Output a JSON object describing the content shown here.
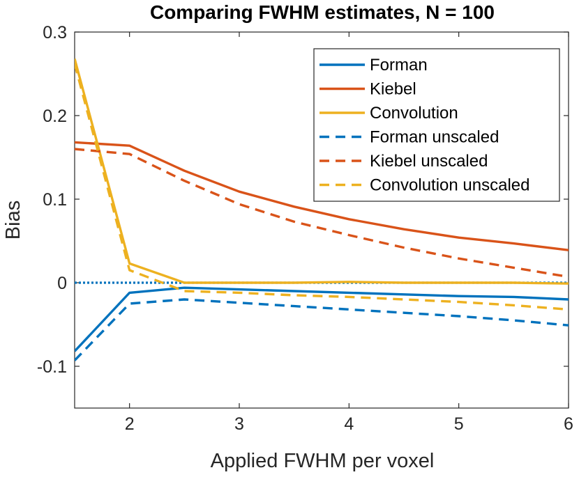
{
  "chart_data": {
    "type": "line",
    "title": "Comparing FWHM estimates, N = 100",
    "xlabel": "Applied FWHM per voxel",
    "ylabel": "Bias",
    "xlim": [
      1.5,
      6
    ],
    "ylim": [
      -0.15,
      0.3
    ],
    "xticks": [
      2,
      3,
      4,
      5,
      6
    ],
    "xtick_labels": [
      "2",
      "3",
      "4",
      "5",
      "6"
    ],
    "yticks": [
      -0.1,
      0,
      0.1,
      0.2,
      0.3
    ],
    "ytick_labels": [
      "-0.1",
      "0",
      "0.1",
      "0.2",
      "0.3"
    ],
    "grid": false,
    "legend_position": "top-right",
    "x": [
      1.5,
      2,
      2.5,
      3,
      3.5,
      4,
      4.5,
      5,
      5.5,
      6
    ],
    "series": [
      {
        "name": "Forman",
        "color": "#0072BD",
        "dash": "solid",
        "values": [
          -0.082,
          -0.012,
          -0.006,
          -0.008,
          -0.01,
          -0.012,
          -0.014,
          -0.016,
          -0.017,
          -0.02
        ]
      },
      {
        "name": "Kiebel",
        "color": "#D95319",
        "dash": "solid",
        "values": [
          0.168,
          0.164,
          0.134,
          0.109,
          0.091,
          0.076,
          0.064,
          0.054,
          0.047,
          0.039
        ]
      },
      {
        "name": "Convolution",
        "color": "#EDB120",
        "dash": "solid",
        "values": [
          0.268,
          0.023,
          0.0,
          0.0,
          0.0,
          0.001,
          0.0,
          0.0,
          0.0,
          -0.001
        ]
      },
      {
        "name": "Forman unscaled",
        "color": "#0072BD",
        "dash": "dashed",
        "values": [
          -0.093,
          -0.025,
          -0.02,
          -0.024,
          -0.028,
          -0.032,
          -0.036,
          -0.04,
          -0.045,
          -0.051
        ]
      },
      {
        "name": "Kiebel unscaled",
        "color": "#D95319",
        "dash": "dashed",
        "values": [
          0.16,
          0.154,
          0.122,
          0.094,
          0.073,
          0.057,
          0.042,
          0.029,
          0.018,
          0.007
        ]
      },
      {
        "name": "Convolution unscaled",
        "color": "#EDB120",
        "dash": "dashed",
        "values": [
          0.262,
          0.015,
          -0.01,
          -0.012,
          -0.015,
          -0.017,
          -0.02,
          -0.023,
          -0.027,
          -0.032
        ]
      }
    ],
    "reference_line": {
      "y": 0,
      "color": "#0072BD",
      "style": "dotted"
    }
  }
}
